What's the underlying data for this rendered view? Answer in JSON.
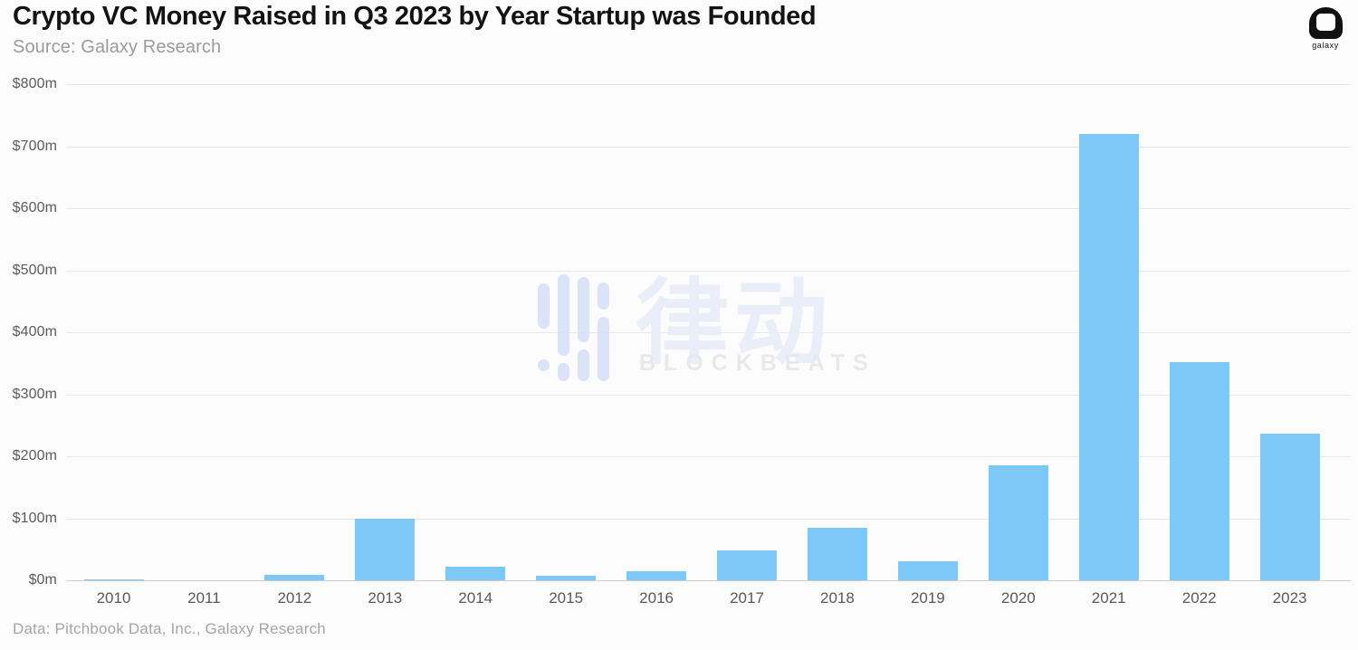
{
  "header": {
    "title": "Crypto VC Money Raised in Q3 2023 by Year Startup was Founded",
    "source": "Source: Galaxy Research",
    "logo_word": "galaxy"
  },
  "watermark": {
    "cjk": "律动",
    "latin": "BLOCKBEATS"
  },
  "footer": {
    "credit": "Data: Pitchbook Data, Inc., Galaxy Research"
  },
  "colors": {
    "bar": "#7dc8f7",
    "grid": "#e8e8e8",
    "baseline": "#cfcfcf",
    "axis_text": "#595c5e",
    "title": "#131313",
    "subtitle": "#9b9b9b",
    "footer_text": "#a5a5a5",
    "background": "#fcfcfc",
    "watermark_icon": "#d5def7",
    "watermark_text": "#e9edf8"
  },
  "chart_data": {
    "type": "bar",
    "title": "Crypto VC Money Raised in Q3 2023 by Year Startup was Founded",
    "subtitle": "Source: Galaxy Research",
    "categories": [
      "2010",
      "2011",
      "2012",
      "2013",
      "2014",
      "2015",
      "2016",
      "2017",
      "2018",
      "2019",
      "2020",
      "2021",
      "2022",
      "2023"
    ],
    "values": [
      2,
      0,
      9,
      100,
      22,
      8,
      14,
      48,
      84,
      30,
      185,
      720,
      352,
      236
    ],
    "unit": "$m",
    "xlabel": "Year Startup was Founded",
    "ylabel": "",
    "ylim": [
      0,
      800
    ],
    "ytick_step": 100,
    "ytick_prefix": "$",
    "ytick_suffix": "m",
    "grid": true,
    "legend": false,
    "credit": "Data: Pitchbook Data, Inc., Galaxy Research"
  }
}
